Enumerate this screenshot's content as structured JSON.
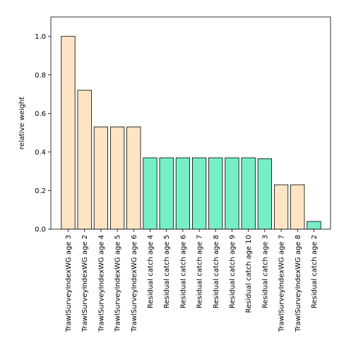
{
  "chart_data": {
    "type": "bar",
    "title": "",
    "xlabel": "",
    "ylabel": "relative weight",
    "ylim": [
      0,
      1.1
    ],
    "yticks": [
      0.0,
      0.2,
      0.4,
      0.6,
      0.8,
      1.0
    ],
    "ytick_labels": [
      "0.0",
      "0.2",
      "0.4",
      "0.6",
      "0.8",
      "1.0"
    ],
    "grid": false,
    "legend": "none",
    "categories": [
      "TrawlSurveyIndexWG age 3",
      "TrawlSurveyIndexWG age 2",
      "TrawlSurveyIndexWG age 4",
      "TrawlSurveyIndexWG age 5",
      "TrawlSurveyIndexWG age 6",
      "Residual catch age 4",
      "Residual catch age 5",
      "Residual catch age 6",
      "Residual catch age 7",
      "Residual catch age 8",
      "Residual catch age 9",
      "Residual catch age 10",
      "Residual catch age 3",
      "TrawlSurveyIndexWG age 7",
      "TrawlSurveyIndexWG age 8",
      "Residual catch age 2"
    ],
    "values": [
      1.0,
      0.72,
      0.53,
      0.53,
      0.53,
      0.37,
      0.37,
      0.37,
      0.37,
      0.37,
      0.37,
      0.37,
      0.365,
      0.23,
      0.23,
      0.04
    ],
    "bar_groups": [
      "survey",
      "survey",
      "survey",
      "survey",
      "survey",
      "catch",
      "catch",
      "catch",
      "catch",
      "catch",
      "catch",
      "catch",
      "catch",
      "survey",
      "survey",
      "catch"
    ],
    "colors": {
      "survey": "#ffe4c4",
      "catch": "#76eec6",
      "edge": "#000000"
    }
  }
}
